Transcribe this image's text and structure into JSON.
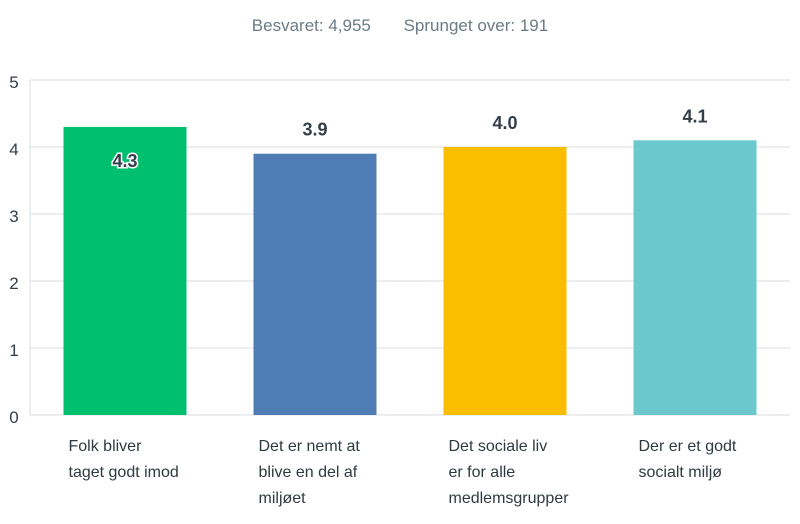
{
  "summary": {
    "answered": "Besvaret: 4,955",
    "skipped": "Sprunget over: 191"
  },
  "colors": {
    "bar1": "#00bf6f",
    "bar2": "#507cb6",
    "bar3": "#f9be00",
    "bar4": "#6bc8cd",
    "grid": "#e6e9eb",
    "axis_text": "#333e48",
    "value_text": "#333e48"
  },
  "chart_data": {
    "type": "bar",
    "categories": [
      "Folk bliver\ntaget godt imod",
      "Det er nemt at\nblive en del af\nmiljøet",
      "Det sociale liv\ner for alle\nmedlemsgrupper",
      "Der er et godt\nsocialt miljø"
    ],
    "values": [
      4.3,
      3.9,
      4.0,
      4.1
    ],
    "value_labels": [
      "4.3",
      "3.9",
      "4.0",
      "4.1"
    ],
    "ylim": [
      0,
      5
    ],
    "yticks": [
      "0",
      "1",
      "2",
      "3",
      "4",
      "5"
    ],
    "grid": true,
    "title": "",
    "xlabel": "",
    "ylabel": ""
  }
}
